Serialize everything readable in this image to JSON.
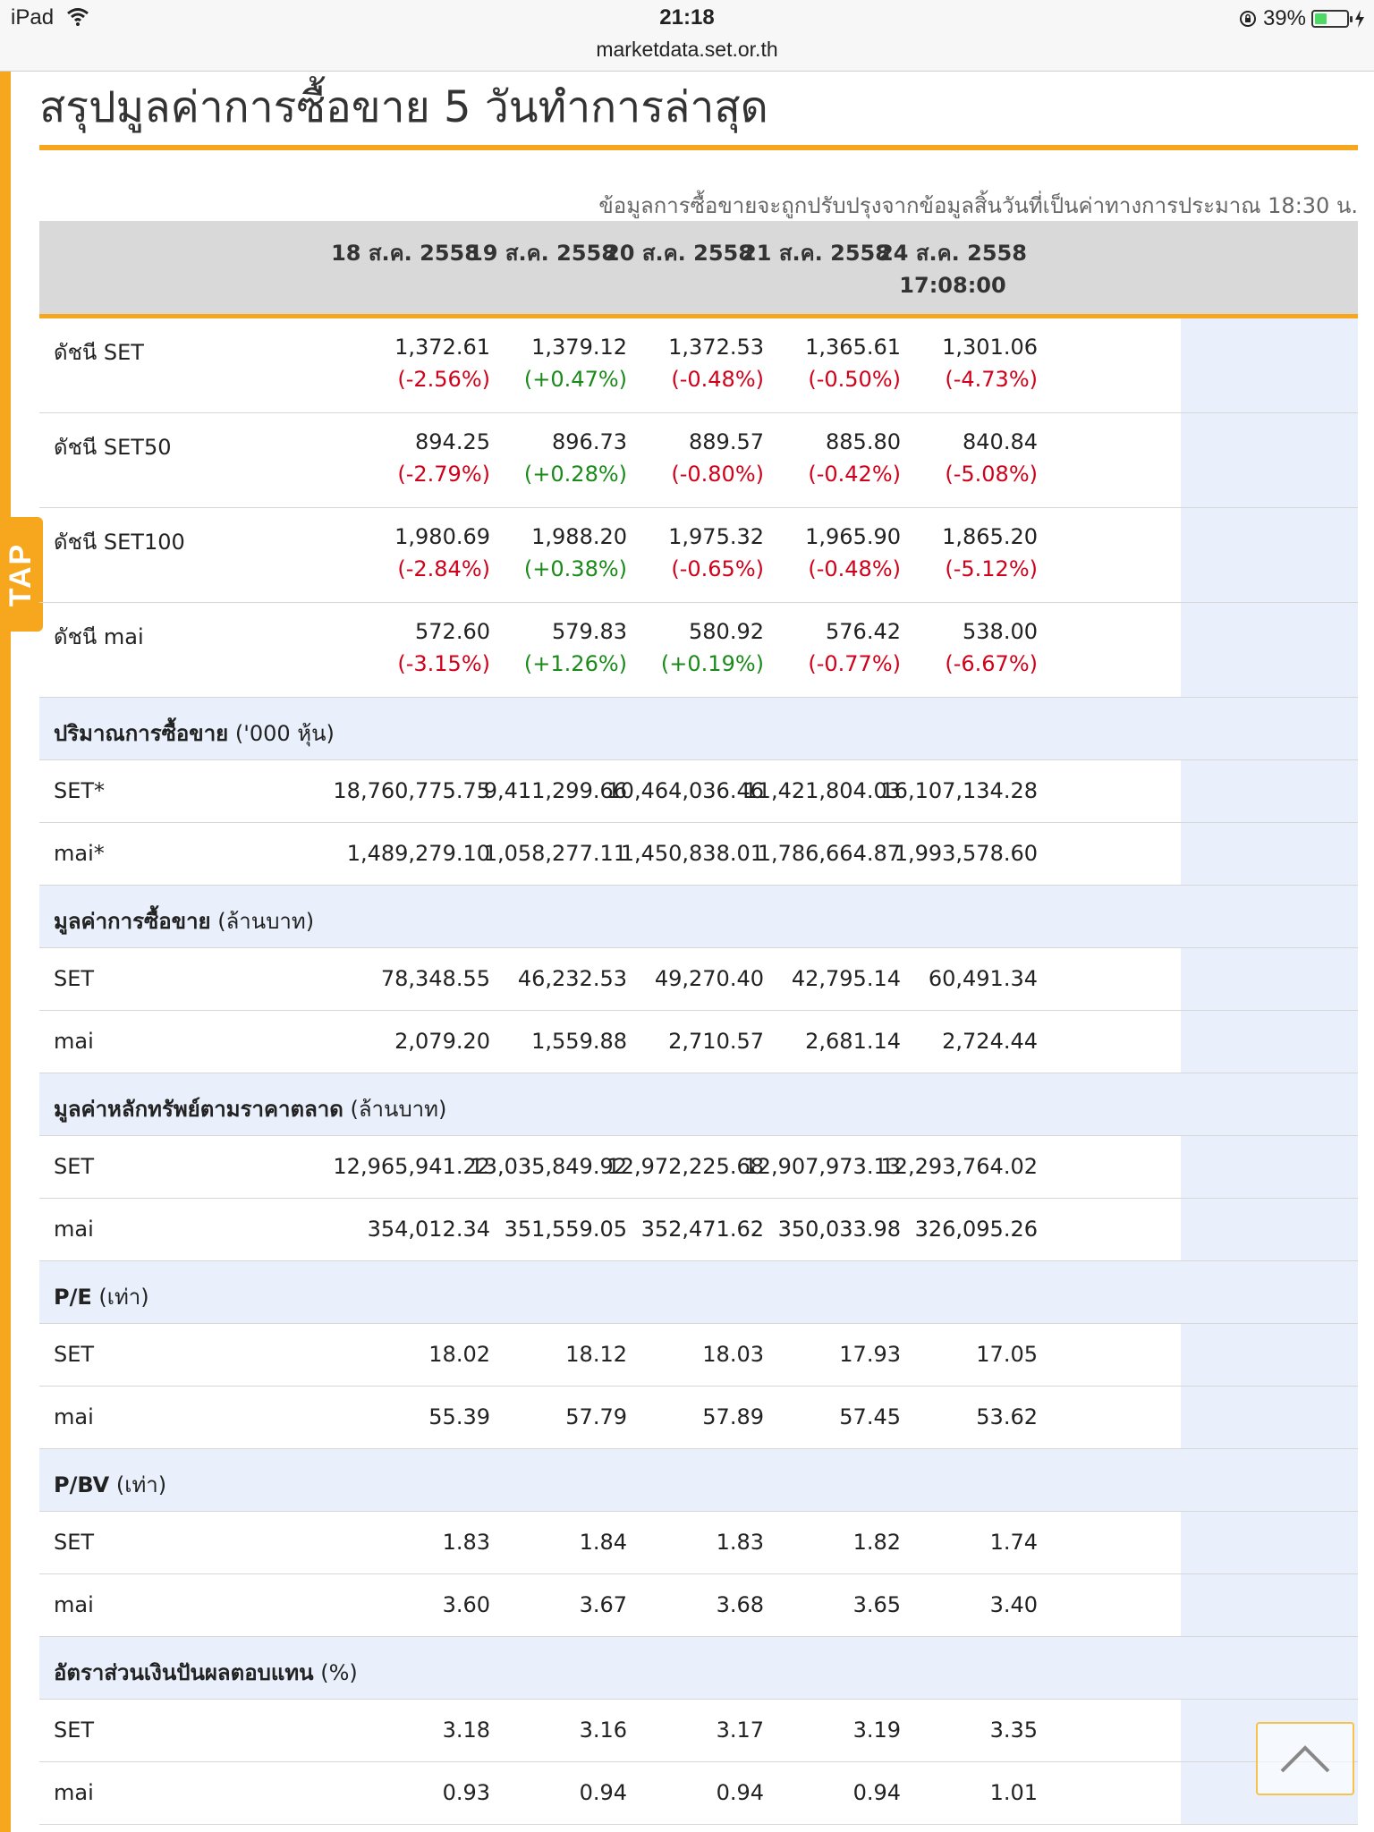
{
  "status_bar": {
    "device": "iPad",
    "time": "21:18",
    "url": "marketdata.set.or.th",
    "battery": "39%",
    "battery_level": 0.39
  },
  "side_tab": {
    "label": "TAP"
  },
  "page": {
    "title": "สรุปมูลค่าการซื้อขาย 5 วันทำการล่าสุด",
    "note": "ข้อมูลการซื้อขายจะถูกปรับปรุงจากข้อมูลสิ้นวันที่เป็นค่าทางการประมาณ 18:30 น."
  },
  "table": {
    "columns": [
      {
        "date": "18 ส.ค. 2558",
        "time": ""
      },
      {
        "date": "19 ส.ค. 2558",
        "time": ""
      },
      {
        "date": "20 ส.ค. 2558",
        "time": ""
      },
      {
        "date": "21 ส.ค. 2558",
        "time": ""
      },
      {
        "date": "24 ส.ค. 2558",
        "time": "17:08:00"
      }
    ],
    "index_rows": [
      {
        "label": "ดัชนี SET",
        "values": [
          "1,372.61",
          "1,379.12",
          "1,372.53",
          "1,365.61",
          "1,301.06"
        ],
        "changes": [
          "(-2.56%)",
          "(+0.47%)",
          "(-0.48%)",
          "(-0.50%)",
          "(-4.73%)"
        ]
      },
      {
        "label": "ดัชนี SET50",
        "values": [
          "894.25",
          "896.73",
          "889.57",
          "885.80",
          "840.84"
        ],
        "changes": [
          "(-2.79%)",
          "(+0.28%)",
          "(-0.80%)",
          "(-0.42%)",
          "(-5.08%)"
        ]
      },
      {
        "label": "ดัชนี SET100",
        "values": [
          "1,980.69",
          "1,988.20",
          "1,975.32",
          "1,965.90",
          "1,865.20"
        ],
        "changes": [
          "(-2.84%)",
          "(+0.38%)",
          "(-0.65%)",
          "(-0.48%)",
          "(-5.12%)"
        ]
      },
      {
        "label": "ดัชนี mai",
        "values": [
          "572.60",
          "579.83",
          "580.92",
          "576.42",
          "538.00"
        ],
        "changes": [
          "(-3.15%)",
          "(+1.26%)",
          "(+0.19%)",
          "(-0.77%)",
          "(-6.67%)"
        ]
      }
    ],
    "sections": [
      {
        "title_bold": "ปริมาณการซื้อขาย",
        "title_unit": " ('000 หุ้น)",
        "rows": [
          {
            "label": "SET*",
            "values": [
              "18,760,775.75",
              "9,411,299.66",
              "10,464,036.46",
              "11,421,804.03",
              "16,107,134.28"
            ]
          },
          {
            "label": "mai*",
            "values": [
              "1,489,279.10",
              "1,058,277.11",
              "1,450,838.01",
              "1,786,664.87",
              "1,993,578.60"
            ]
          }
        ]
      },
      {
        "title_bold": "มูลค่าการซื้อขาย",
        "title_unit": " (ล้านบาท)",
        "rows": [
          {
            "label": "SET",
            "values": [
              "78,348.55",
              "46,232.53",
              "49,270.40",
              "42,795.14",
              "60,491.34"
            ]
          },
          {
            "label": "mai",
            "values": [
              "2,079.20",
              "1,559.88",
              "2,710.57",
              "2,681.14",
              "2,724.44"
            ]
          }
        ]
      },
      {
        "title_bold": "มูลค่าหลักทรัพย์ตามราคาตลาด",
        "title_unit": " (ล้านบาท)",
        "rows": [
          {
            "label": "SET",
            "values": [
              "12,965,941.22",
              "13,035,849.92",
              "12,972,225.68",
              "12,907,973.13",
              "12,293,764.02"
            ]
          },
          {
            "label": "mai",
            "values": [
              "354,012.34",
              "351,559.05",
              "352,471.62",
              "350,033.98",
              "326,095.26"
            ]
          }
        ]
      },
      {
        "title_bold": "P/E",
        "title_unit": " (เท่า)",
        "rows": [
          {
            "label": "SET",
            "values": [
              "18.02",
              "18.12",
              "18.03",
              "17.93",
              "17.05"
            ]
          },
          {
            "label": "mai",
            "values": [
              "55.39",
              "57.79",
              "57.89",
              "57.45",
              "53.62"
            ]
          }
        ]
      },
      {
        "title_bold": "P/BV",
        "title_unit": " (เท่า)",
        "rows": [
          {
            "label": "SET",
            "values": [
              "1.83",
              "1.84",
              "1.83",
              "1.82",
              "1.74"
            ]
          },
          {
            "label": "mai",
            "values": [
              "3.60",
              "3.67",
              "3.68",
              "3.65",
              "3.40"
            ]
          }
        ]
      },
      {
        "title_bold": "อัตราส่วนเงินปันผลตอบแทน",
        "title_unit": " (%)",
        "rows": [
          {
            "label": "SET",
            "values": [
              "3.18",
              "3.16",
              "3.17",
              "3.19",
              "3.35"
            ]
          },
          {
            "label": "mai",
            "values": [
              "0.93",
              "0.94",
              "0.94",
              "0.94",
              "1.01"
            ]
          }
        ]
      }
    ]
  },
  "colors": {
    "accent": "#f7a71d",
    "negative": "#d0021b",
    "positive": "#1a8a1a",
    "highlight": "#e9f0fb"
  },
  "icons": {
    "wifi": "wifi-icon",
    "lock_rotation": "rotation-lock-icon",
    "battery": "battery-icon",
    "charging": "bolt-icon",
    "back_to_top": "chevron-up-icon"
  }
}
